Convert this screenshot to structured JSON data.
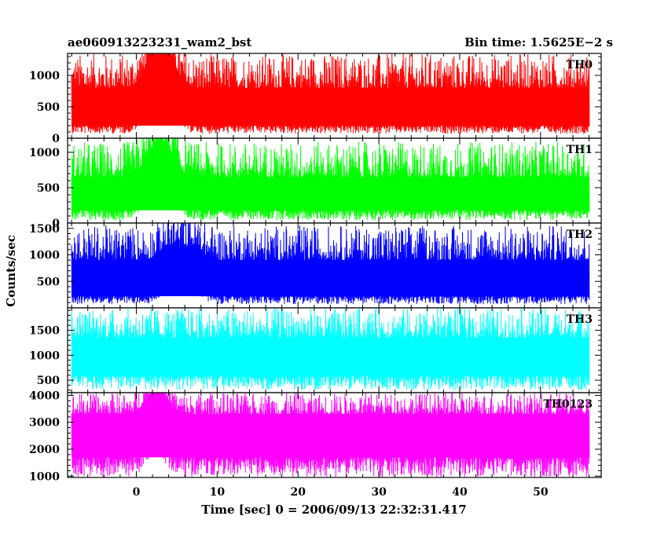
{
  "chart_data": {
    "type": "line",
    "title_left": "ae060913223231_wam2_bst",
    "title_right": "Bin time: 1.5625E−2 s",
    "xlabel": "Time [sec] 0 = 2006/09/13 22:32:31.417",
    "ylabel": "Counts/sec",
    "xlim": [
      -8.5,
      57.5
    ],
    "data_x_range": [
      -8,
      56
    ],
    "bin_time": 0.015625,
    "x_ticks": [
      0,
      10,
      20,
      30,
      40,
      50
    ],
    "grid": false,
    "panels": [
      {
        "name": "TH0",
        "color": "#ff0000",
        "ylim": [
          0,
          1350
        ],
        "y_ticks": [
          0,
          500,
          1000
        ],
        "y_tick_labels": [
          "0",
          "500",
          "1000"
        ],
        "low": 70,
        "band_low": 200,
        "band_high": 800,
        "high": 1350,
        "burst_times": [
          2.0,
          3.0,
          4.0
        ],
        "burst_peak": 330
      },
      {
        "name": "TH1",
        "color": "#00ff00",
        "ylim": [
          0,
          1200
        ],
        "y_ticks": [
          0,
          500,
          1000
        ],
        "y_tick_labels": [
          "0",
          "500",
          "1000"
        ],
        "low": 40,
        "band_low": 180,
        "band_high": 650,
        "high": 1150,
        "burst_times": [
          2.0,
          3.0,
          4.0
        ],
        "burst_peak": 220
      },
      {
        "name": "TH2",
        "color": "#0000ff",
        "ylim": [
          0,
          1600
        ],
        "y_ticks": [
          500,
          1000,
          1500
        ],
        "y_tick_labels": [
          "500",
          "1000",
          "1500"
        ],
        "low": 70,
        "band_low": 220,
        "band_high": 900,
        "high": 1560,
        "burst_times": [
          4.0,
          7.0
        ],
        "burst_peak": 260
      },
      {
        "name": "TH3",
        "color": "#00ffff",
        "ylim": [
          250,
          1950
        ],
        "y_ticks": [
          500,
          1000,
          1500
        ],
        "y_tick_labels": [
          "500",
          "1000",
          "1500"
        ],
        "low": 300,
        "band_low": 600,
        "band_high": 1350,
        "high": 1950,
        "burst_times": [],
        "burst_peak": 0
      },
      {
        "name": "TH0123",
        "color": "#ff00ff",
        "ylim": [
          950,
          4100
        ],
        "y_ticks": [
          1000,
          2000,
          3000,
          4000
        ],
        "y_tick_labels": [
          "1000",
          "2000",
          "3000",
          "4000"
        ],
        "low": 950,
        "band_low": 1700,
        "band_high": 3300,
        "high": 4100,
        "burst_times": [
          2.0,
          3.0
        ],
        "burst_peak": 500
      }
    ]
  }
}
